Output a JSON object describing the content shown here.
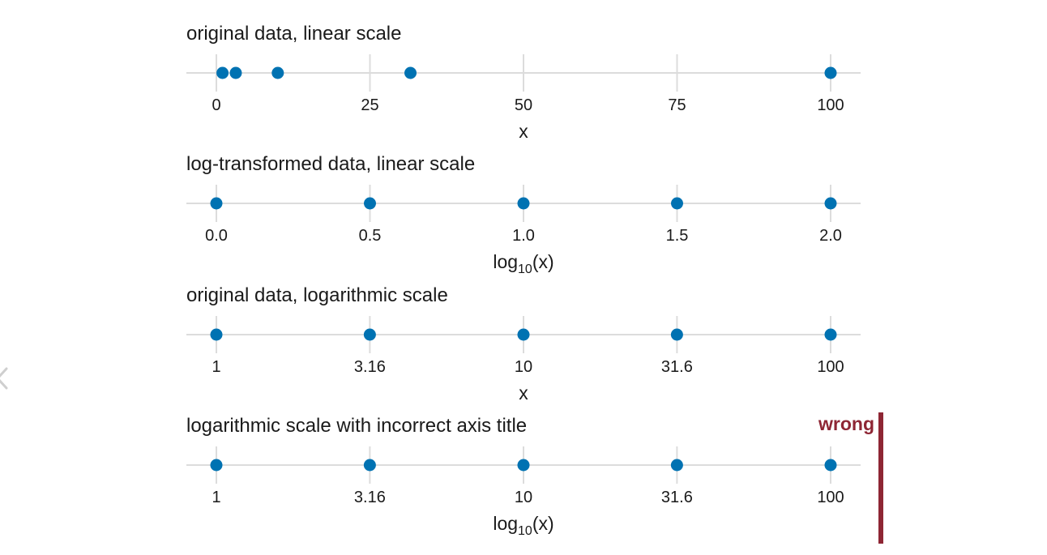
{
  "colors": {
    "point": "#0072B2",
    "grid": "#dcdcdc",
    "text": "#1a1a1a",
    "wrong": "#8e2634",
    "nav_arrow": "#cfcfcf"
  },
  "nav": {
    "icon": "chevron-left-icon"
  },
  "chart_data": [
    {
      "type": "scatter",
      "title": "original data, linear scale",
      "xlabel": "x",
      "xlim": [
        0,
        100
      ],
      "x_scale": "linear",
      "ticks": [
        0,
        25,
        50,
        75,
        100
      ],
      "tick_labels": [
        "0",
        "25",
        "50",
        "75",
        "100"
      ],
      "values": [
        1,
        3.16,
        10,
        31.6,
        100
      ],
      "grid": true
    },
    {
      "type": "scatter",
      "title": "log-transformed data, linear scale",
      "xlabel": "log10(x)",
      "xlim": [
        0,
        2
      ],
      "x_scale": "linear",
      "ticks": [
        0,
        0.5,
        1,
        1.5,
        2
      ],
      "tick_labels": [
        "0.0",
        "0.5",
        "1.0",
        "1.5",
        "2.0"
      ],
      "values": [
        0,
        0.5,
        1,
        1.5,
        2
      ],
      "grid": true
    },
    {
      "type": "scatter",
      "title": "original data, logarithmic scale",
      "xlabel": "x",
      "xlim": [
        1,
        100
      ],
      "x_scale": "log",
      "ticks": [
        1,
        3.16,
        10,
        31.6,
        100
      ],
      "tick_labels": [
        "1",
        "3.16",
        "10",
        "31.6",
        "100"
      ],
      "values": [
        1,
        3.16,
        10,
        31.6,
        100
      ],
      "grid": true
    },
    {
      "type": "scatter",
      "title": "logarithmic scale with incorrect axis title",
      "xlabel": "log10(x)",
      "xlim": [
        1,
        100
      ],
      "x_scale": "log",
      "ticks": [
        1,
        3.16,
        10,
        31.6,
        100
      ],
      "tick_labels": [
        "1",
        "3.16",
        "10",
        "31.6",
        "100"
      ],
      "values": [
        1,
        3.16,
        10,
        31.6,
        100
      ],
      "grid": true,
      "annotation": "wrong"
    }
  ]
}
